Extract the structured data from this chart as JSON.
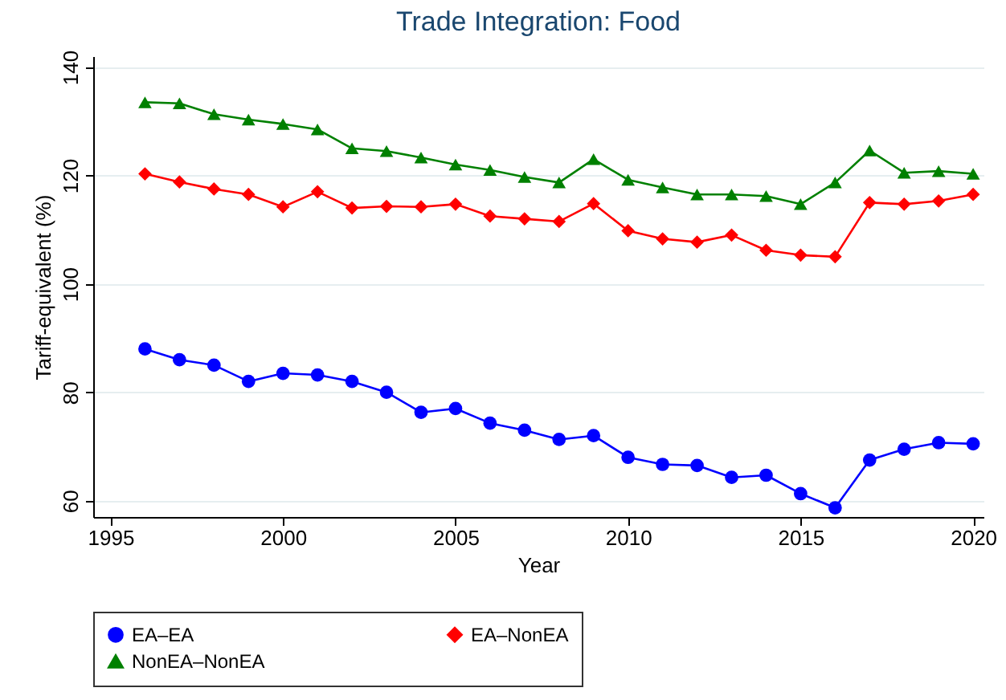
{
  "chart_data": {
    "type": "line",
    "title": "Trade Integration: Food",
    "xlabel": "Year",
    "ylabel": "Tariff-equivalent (%)",
    "x": [
      1996,
      1997,
      1998,
      1999,
      2000,
      2001,
      2002,
      2003,
      2004,
      2005,
      2006,
      2007,
      2008,
      2009,
      2010,
      2011,
      2012,
      2013,
      2014,
      2015,
      2016,
      2017,
      2018,
      2019,
      2020
    ],
    "series": [
      {
        "name": "EA–EA",
        "color": "#0000ff",
        "marker": "circle",
        "values": [
          88,
          86,
          85,
          82,
          83.5,
          83.2,
          82,
          80,
          76.3,
          77,
          74.3,
          73,
          71.3,
          72,
          68,
          66.7,
          66.5,
          64.3,
          64.7,
          61.3,
          58.7,
          67.5,
          69.5,
          70.7,
          70.5
        ]
      },
      {
        "name": "EA–NonEA",
        "color": "#ff0000",
        "marker": "diamond",
        "values": [
          120.3,
          118.8,
          117.5,
          116.5,
          114.2,
          117,
          114,
          114.3,
          114.2,
          114.7,
          112.5,
          112,
          111.5,
          114.8,
          109.8,
          108.3,
          107.7,
          109,
          106.2,
          105.3,
          105,
          115,
          114.7,
          115.3,
          116.5
        ]
      },
      {
        "name": "NonEA–NonEA",
        "color": "#008000",
        "marker": "triangle",
        "values": [
          133.5,
          133.3,
          131.3,
          130.3,
          129.5,
          128.5,
          125,
          124.5,
          123.3,
          122,
          121,
          119.7,
          118.7,
          123,
          119.2,
          117.8,
          116.5,
          116.5,
          116.2,
          114.7,
          118.7,
          124.6,
          120.5,
          120.8,
          120.3
        ]
      }
    ],
    "xlim": [
      1994.5,
      2020.3
    ],
    "xticks": [
      1995,
      2000,
      2005,
      2010,
      2015,
      2020
    ],
    "ylim": [
      57,
      142
    ],
    "yticks": [
      60,
      80,
      100,
      120,
      140
    ],
    "grid": "y",
    "legend": "bottom",
    "line_style": "solid"
  }
}
